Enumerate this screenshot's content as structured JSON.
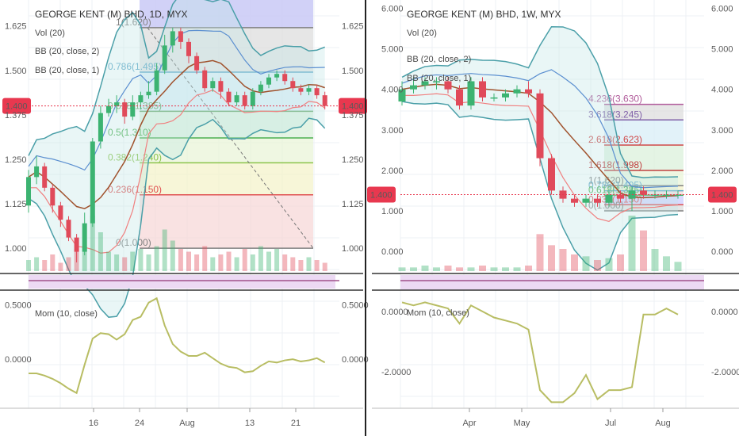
{
  "colors": {
    "up": "#3cb371",
    "down": "#e04a5a",
    "mid": "#a0522d",
    "bb_upper": "#4a9fa8",
    "bb_inner": "#5b8fd0",
    "bb_lower": "#f08080",
    "mom": "#b8bd63",
    "price_badge": "#e8384f",
    "grid": "#eef1f4"
  },
  "chart_data": [
    {
      "type": "candlestick",
      "panel": "left",
      "symbol_title": "GEORGE KENT (M) BHD, 1D, MYX",
      "legend": [
        "Vol (20)",
        "BB (20, close, 2)",
        "BB (20, close, 1)"
      ],
      "ylim": [
        0.94,
        1.68
      ],
      "y_ticks": [
        "1.625",
        "1.500",
        "1.400",
        "1.375",
        "1.250",
        "1.125",
        "1.000"
      ],
      "x_ticks": [
        "16",
        "24",
        "Aug",
        "13",
        "21"
      ],
      "price_badge": "1.400",
      "candles": [
        [
          1.12,
          1.2,
          1.1,
          1.22
        ],
        [
          1.2,
          1.23,
          1.18,
          1.26
        ],
        [
          1.23,
          1.17,
          1.16,
          1.24
        ],
        [
          1.17,
          1.12,
          1.1,
          1.18
        ],
        [
          1.12,
          1.08,
          1.06,
          1.13
        ],
        [
          1.08,
          1.03,
          1.02,
          1.09
        ],
        [
          1.03,
          0.99,
          0.96,
          1.04
        ],
        [
          0.99,
          1.07,
          0.98,
          1.1
        ],
        [
          1.07,
          1.3,
          1.06,
          1.31
        ],
        [
          1.3,
          1.38,
          1.28,
          1.4
        ],
        [
          1.38,
          1.4,
          1.37,
          1.42
        ],
        [
          1.4,
          1.41,
          1.38,
          1.43
        ],
        [
          1.41,
          1.37,
          1.35,
          1.42
        ],
        [
          1.37,
          1.41,
          1.36,
          1.43
        ],
        [
          1.41,
          1.43,
          1.39,
          1.44
        ],
        [
          1.43,
          1.44,
          1.42,
          1.47
        ],
        [
          1.44,
          1.5,
          1.43,
          1.52
        ],
        [
          1.5,
          1.57,
          1.49,
          1.6
        ],
        [
          1.57,
          1.61,
          1.55,
          1.62
        ],
        [
          1.61,
          1.58,
          1.56,
          1.62
        ],
        [
          1.58,
          1.54,
          1.52,
          1.59
        ],
        [
          1.54,
          1.5,
          1.49,
          1.55
        ],
        [
          1.5,
          1.45,
          1.44,
          1.51
        ],
        [
          1.45,
          1.47,
          1.44,
          1.48
        ],
        [
          1.47,
          1.44,
          1.42,
          1.48
        ],
        [
          1.44,
          1.41,
          1.4,
          1.45
        ],
        [
          1.41,
          1.43,
          1.4,
          1.44
        ],
        [
          1.43,
          1.4,
          1.39,
          1.44
        ],
        [
          1.4,
          1.44,
          1.39,
          1.45
        ],
        [
          1.44,
          1.46,
          1.43,
          1.47
        ],
        [
          1.46,
          1.48,
          1.45,
          1.49
        ],
        [
          1.48,
          1.49,
          1.47,
          1.5
        ],
        [
          1.49,
          1.47,
          1.46,
          1.5
        ],
        [
          1.47,
          1.45,
          1.44,
          1.48
        ],
        [
          1.45,
          1.44,
          1.43,
          1.46
        ],
        [
          1.44,
          1.45,
          1.43,
          1.46
        ],
        [
          1.45,
          1.43,
          1.42,
          1.46
        ],
        [
          1.43,
          1.4,
          1.39,
          1.44
        ]
      ],
      "fib_levels": [
        {
          "label": "1(1.620)",
          "value": 1.62,
          "color": "#808080"
        },
        {
          "label": "0.786(1.495)",
          "value": 1.495,
          "color": "#5fa8c8"
        },
        {
          "label": "0.618(1.385)",
          "value": 1.385,
          "color": "#6aa86a"
        },
        {
          "label": "0.5(1.310)",
          "value": 1.31,
          "color": "#4caf50"
        },
        {
          "label": "0.382(1.240)",
          "value": 1.24,
          "color": "#8bc34a"
        },
        {
          "label": "0.236(1.150)",
          "value": 1.15,
          "color": "#e05050"
        },
        {
          "label": "0(1.000)",
          "value": 1.0,
          "color": "#808080"
        }
      ],
      "volume": [
        4,
        5,
        4,
        6,
        3,
        5,
        8,
        9,
        20,
        14,
        7,
        6,
        5,
        7,
        8,
        6,
        9,
        15,
        11,
        8,
        7,
        6,
        9,
        5,
        6,
        7,
        5,
        8,
        6,
        9,
        7,
        8,
        6,
        5,
        4,
        5,
        4,
        3
      ],
      "mom_panel": {
        "label": "Mom (10, close)",
        "ylim": [
          -0.45,
          0.62
        ],
        "y_ticks": [
          "0.5000",
          "0.0000"
        ],
        "values": [
          -0.13,
          -0.13,
          -0.15,
          -0.18,
          -0.22,
          -0.27,
          -0.31,
          -0.05,
          0.19,
          0.24,
          0.23,
          0.18,
          0.23,
          0.36,
          0.39,
          0.52,
          0.56,
          0.31,
          0.14,
          0.07,
          0.03,
          0.03,
          0.06,
          0.01,
          -0.04,
          -0.07,
          -0.08,
          -0.12,
          -0.11,
          -0.06,
          -0.02,
          -0.03,
          -0.01,
          0.0,
          -0.02,
          -0.01,
          0.01,
          -0.03
        ]
      }
    },
    {
      "type": "candlestick",
      "panel": "right",
      "symbol_title": "GEORGE KENT (M) BHD, 1W, MYX",
      "legend": [
        "Vol (20)",
        "BB (20, close, 2)",
        "BB (20, close, 1)"
      ],
      "ylim": [
        -0.45,
        6.05
      ],
      "y_ticks": [
        "6.000",
        "5.000",
        "4.000",
        "3.000",
        "2.000",
        "1.400",
        "1.000",
        "0.000"
      ],
      "x_ticks": [
        "Apr",
        "May",
        "Jul",
        "Aug"
      ],
      "price_badge": "1.400",
      "candles": [
        [
          3.7,
          4.0,
          3.6,
          4.2
        ],
        [
          4.0,
          4.1,
          3.9,
          4.3
        ],
        [
          4.1,
          4.2,
          4.0,
          4.3
        ],
        [
          4.2,
          4.2,
          4.0,
          4.3
        ],
        [
          4.2,
          4.0,
          3.9,
          4.3
        ],
        [
          4.0,
          3.6,
          3.5,
          4.1
        ],
        [
          3.6,
          4.2,
          3.5,
          4.3
        ],
        [
          4.2,
          3.8,
          3.7,
          4.3
        ],
        [
          3.8,
          3.8,
          3.7,
          3.9
        ],
        [
          3.8,
          3.9,
          3.7,
          4.0
        ],
        [
          3.9,
          4.0,
          3.8,
          4.1
        ],
        [
          4.0,
          3.9,
          3.8,
          4.2
        ],
        [
          3.9,
          2.3,
          2.1,
          4.0
        ],
        [
          2.3,
          1.5,
          1.4,
          2.4
        ],
        [
          1.5,
          1.3,
          1.2,
          1.6
        ],
        [
          1.3,
          1.2,
          1.1,
          1.4
        ],
        [
          1.2,
          1.3,
          1.1,
          1.4
        ],
        [
          1.3,
          1.2,
          1.1,
          1.4
        ],
        [
          1.2,
          1.4,
          1.1,
          1.5
        ],
        [
          1.4,
          1.3,
          1.2,
          1.5
        ],
        [
          1.3,
          1.5,
          1.0,
          1.6
        ],
        [
          1.5,
          1.4,
          1.3,
          1.6
        ],
        [
          1.4,
          1.4,
          1.3,
          1.5
        ],
        [
          1.4,
          1.4,
          1.3,
          1.5
        ],
        [
          1.4,
          1.4,
          1.3,
          1.5
        ]
      ],
      "fib_levels": [
        {
          "label": "4.236(3.630)",
          "value": 3.63,
          "color": "#b05a9a"
        },
        {
          "label": "3.618(3.245)",
          "value": 3.245,
          "color": "#8060a8"
        },
        {
          "label": "2.618(2.623)",
          "value": 2.623,
          "color": "#d04848"
        },
        {
          "label": "1.618(1.998)",
          "value": 1.998,
          "color": "#c04040"
        },
        {
          "label": "1(1.620)",
          "value": 1.62,
          "color": "#808080"
        },
        {
          "label": "0.786(1.495)",
          "value": 1.495,
          "color": "#5fa8c8"
        },
        {
          "label": "0.618(1.385)",
          "value": 1.385,
          "color": "#4caf50"
        },
        {
          "label": "0.236(1.150)",
          "value": 1.15,
          "color": "#e05050"
        },
        {
          "label": "0(1.000)",
          "value": 1.0,
          "color": "#808080"
        }
      ],
      "volume": [
        2,
        2,
        3,
        2,
        3,
        2,
        2,
        3,
        2,
        2,
        2,
        3,
        20,
        14,
        12,
        9,
        8,
        6,
        7,
        9,
        30,
        22,
        12,
        8,
        5
      ],
      "mom_panel": {
        "label": "Mom (10, close)",
        "ylim": [
          -3.2,
          0.6
        ],
        "y_ticks": [
          "0.0000",
          "-2.0000"
        ],
        "values": [
          0.3,
          0.2,
          0.3,
          0.2,
          0.1,
          -0.4,
          0.2,
          0.0,
          -0.2,
          -0.3,
          -0.4,
          -0.6,
          -2.6,
          -3.0,
          -3.0,
          -2.7,
          -2.1,
          -2.9,
          -2.6,
          -2.6,
          -2.5,
          -0.1,
          -0.1,
          0.1,
          -0.1
        ]
      }
    }
  ]
}
